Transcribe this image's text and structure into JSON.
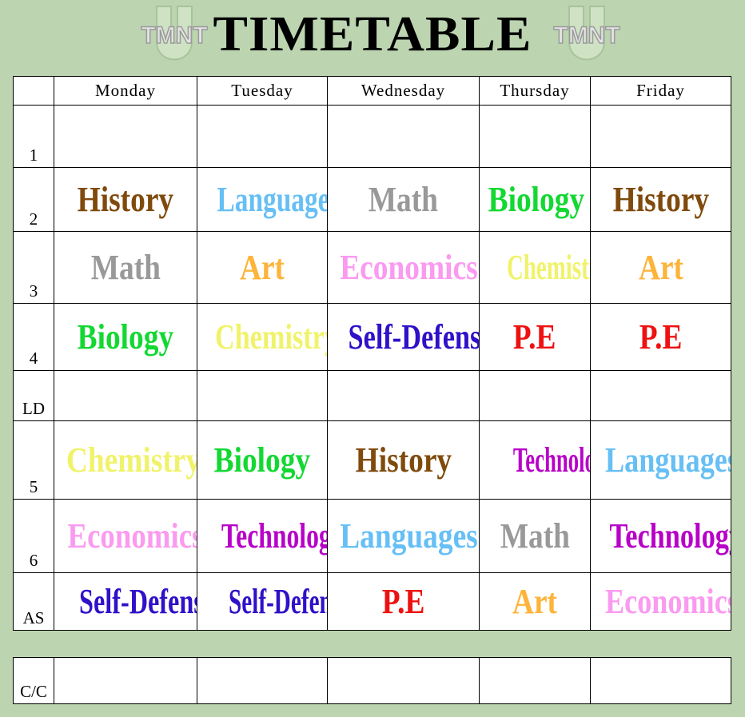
{
  "header": {
    "title": "TIMETABLE",
    "logo_text": "TMNT U"
  },
  "days": [
    "Monday",
    "Tuesday",
    "Wednesday",
    "Thursday",
    "Friday"
  ],
  "colors": {
    "History": "#7f4a0c",
    "Languages": "#66bff5",
    "Math": "#999999",
    "Biology": "#13d832",
    "Art": "#fdb43a",
    "Economics": "#fa9af0",
    "Chemistry": "#f0f36a",
    "Self-Defense": "#3010c8",
    "P.E": "#ee1111",
    "Technology": "#b800c8"
  },
  "periods": [
    {
      "label": "1",
      "cells": [
        "",
        "",
        "",
        "",
        ""
      ]
    },
    {
      "label": "2",
      "cells": [
        "History",
        "Languages",
        "Math",
        "Biology",
        "History"
      ]
    },
    {
      "label": "3",
      "cells": [
        "Math",
        "Art",
        "Economics",
        "Chemistry",
        "Art"
      ]
    },
    {
      "label": "4",
      "cells": [
        "Biology",
        "Chemistry",
        "Self-Defense",
        "P.E",
        "P.E"
      ]
    },
    {
      "label": "LD",
      "cells": [
        "",
        "",
        "",
        "",
        ""
      ]
    },
    {
      "label": "5",
      "cells": [
        "Chemistry",
        "Biology",
        "History",
        "Technology",
        "Languages"
      ]
    },
    {
      "label": "6",
      "cells": [
        "Economics",
        "Technology",
        "Languages",
        "Math",
        "Technology"
      ]
    },
    {
      "label": "AS",
      "cells": [
        "Self-Defense",
        "Self-Defense",
        "P.E",
        "Art",
        "Economics"
      ]
    }
  ],
  "extra": {
    "label": "C/C",
    "cells": [
      "",
      "",
      "",
      "",
      ""
    ]
  }
}
